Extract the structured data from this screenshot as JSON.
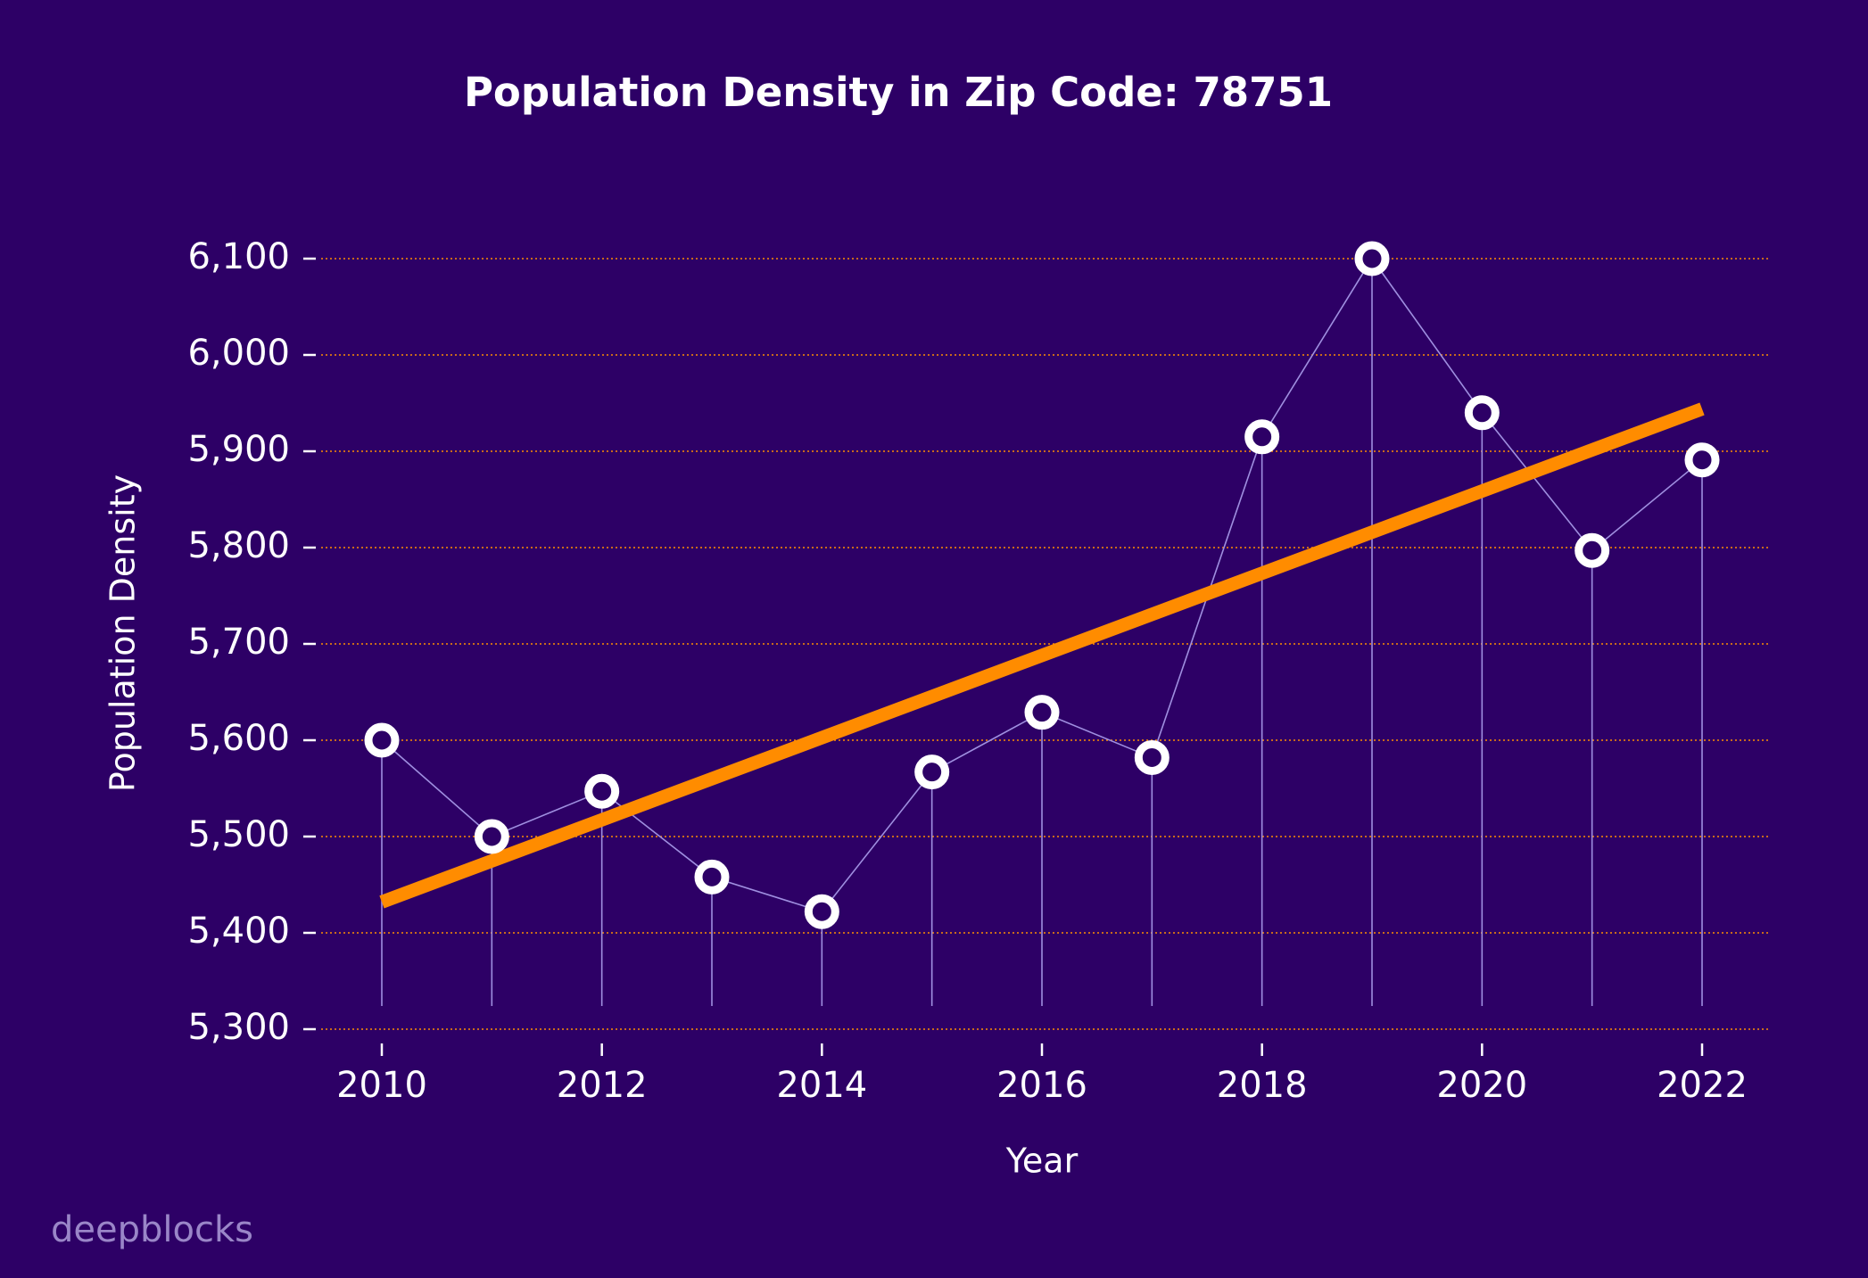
{
  "chart_data": {
    "type": "line",
    "title": "Population Density in Zip Code: 78751",
    "xlabel": "Year",
    "ylabel": "Population Density",
    "watermark": "deepblocks",
    "x": [
      2010,
      2011,
      2012,
      2013,
      2014,
      2015,
      2016,
      2017,
      2018,
      2019,
      2020,
      2021,
      2022
    ],
    "series": [
      {
        "color": "#ffffff",
        "line_color": "#9f8fe0",
        "values": [
          5600,
          5500,
          5547,
          5458,
          5422,
          5567,
          5629,
          5582,
          5915,
          6100,
          5940,
          5797,
          5891
        ]
      }
    ],
    "trend": {
      "color": "#ff8c00",
      "x": [
        2010,
        2022
      ],
      "values": [
        5432,
        5944
      ]
    },
    "xlim": [
      2009.4,
      2022.6
    ],
    "ylim": [
      5300,
      6100
    ],
    "xticks": [
      2010,
      2012,
      2014,
      2016,
      2018,
      2020,
      2022
    ],
    "yticks": [
      {
        "value": 5300,
        "label": "5,300"
      },
      {
        "value": 5400,
        "label": "5,400"
      },
      {
        "value": 5500,
        "label": "5,500"
      },
      {
        "value": 5600,
        "label": "5,600"
      },
      {
        "value": 5700,
        "label": "5,700"
      },
      {
        "value": 5800,
        "label": "5,800"
      },
      {
        "value": 5900,
        "label": "5,900"
      },
      {
        "value": 6000,
        "label": "6,000"
      },
      {
        "value": 6100,
        "label": "6,100"
      }
    ],
    "grid": true,
    "grid_color": "#ff8c00",
    "background": "#2d0066"
  }
}
